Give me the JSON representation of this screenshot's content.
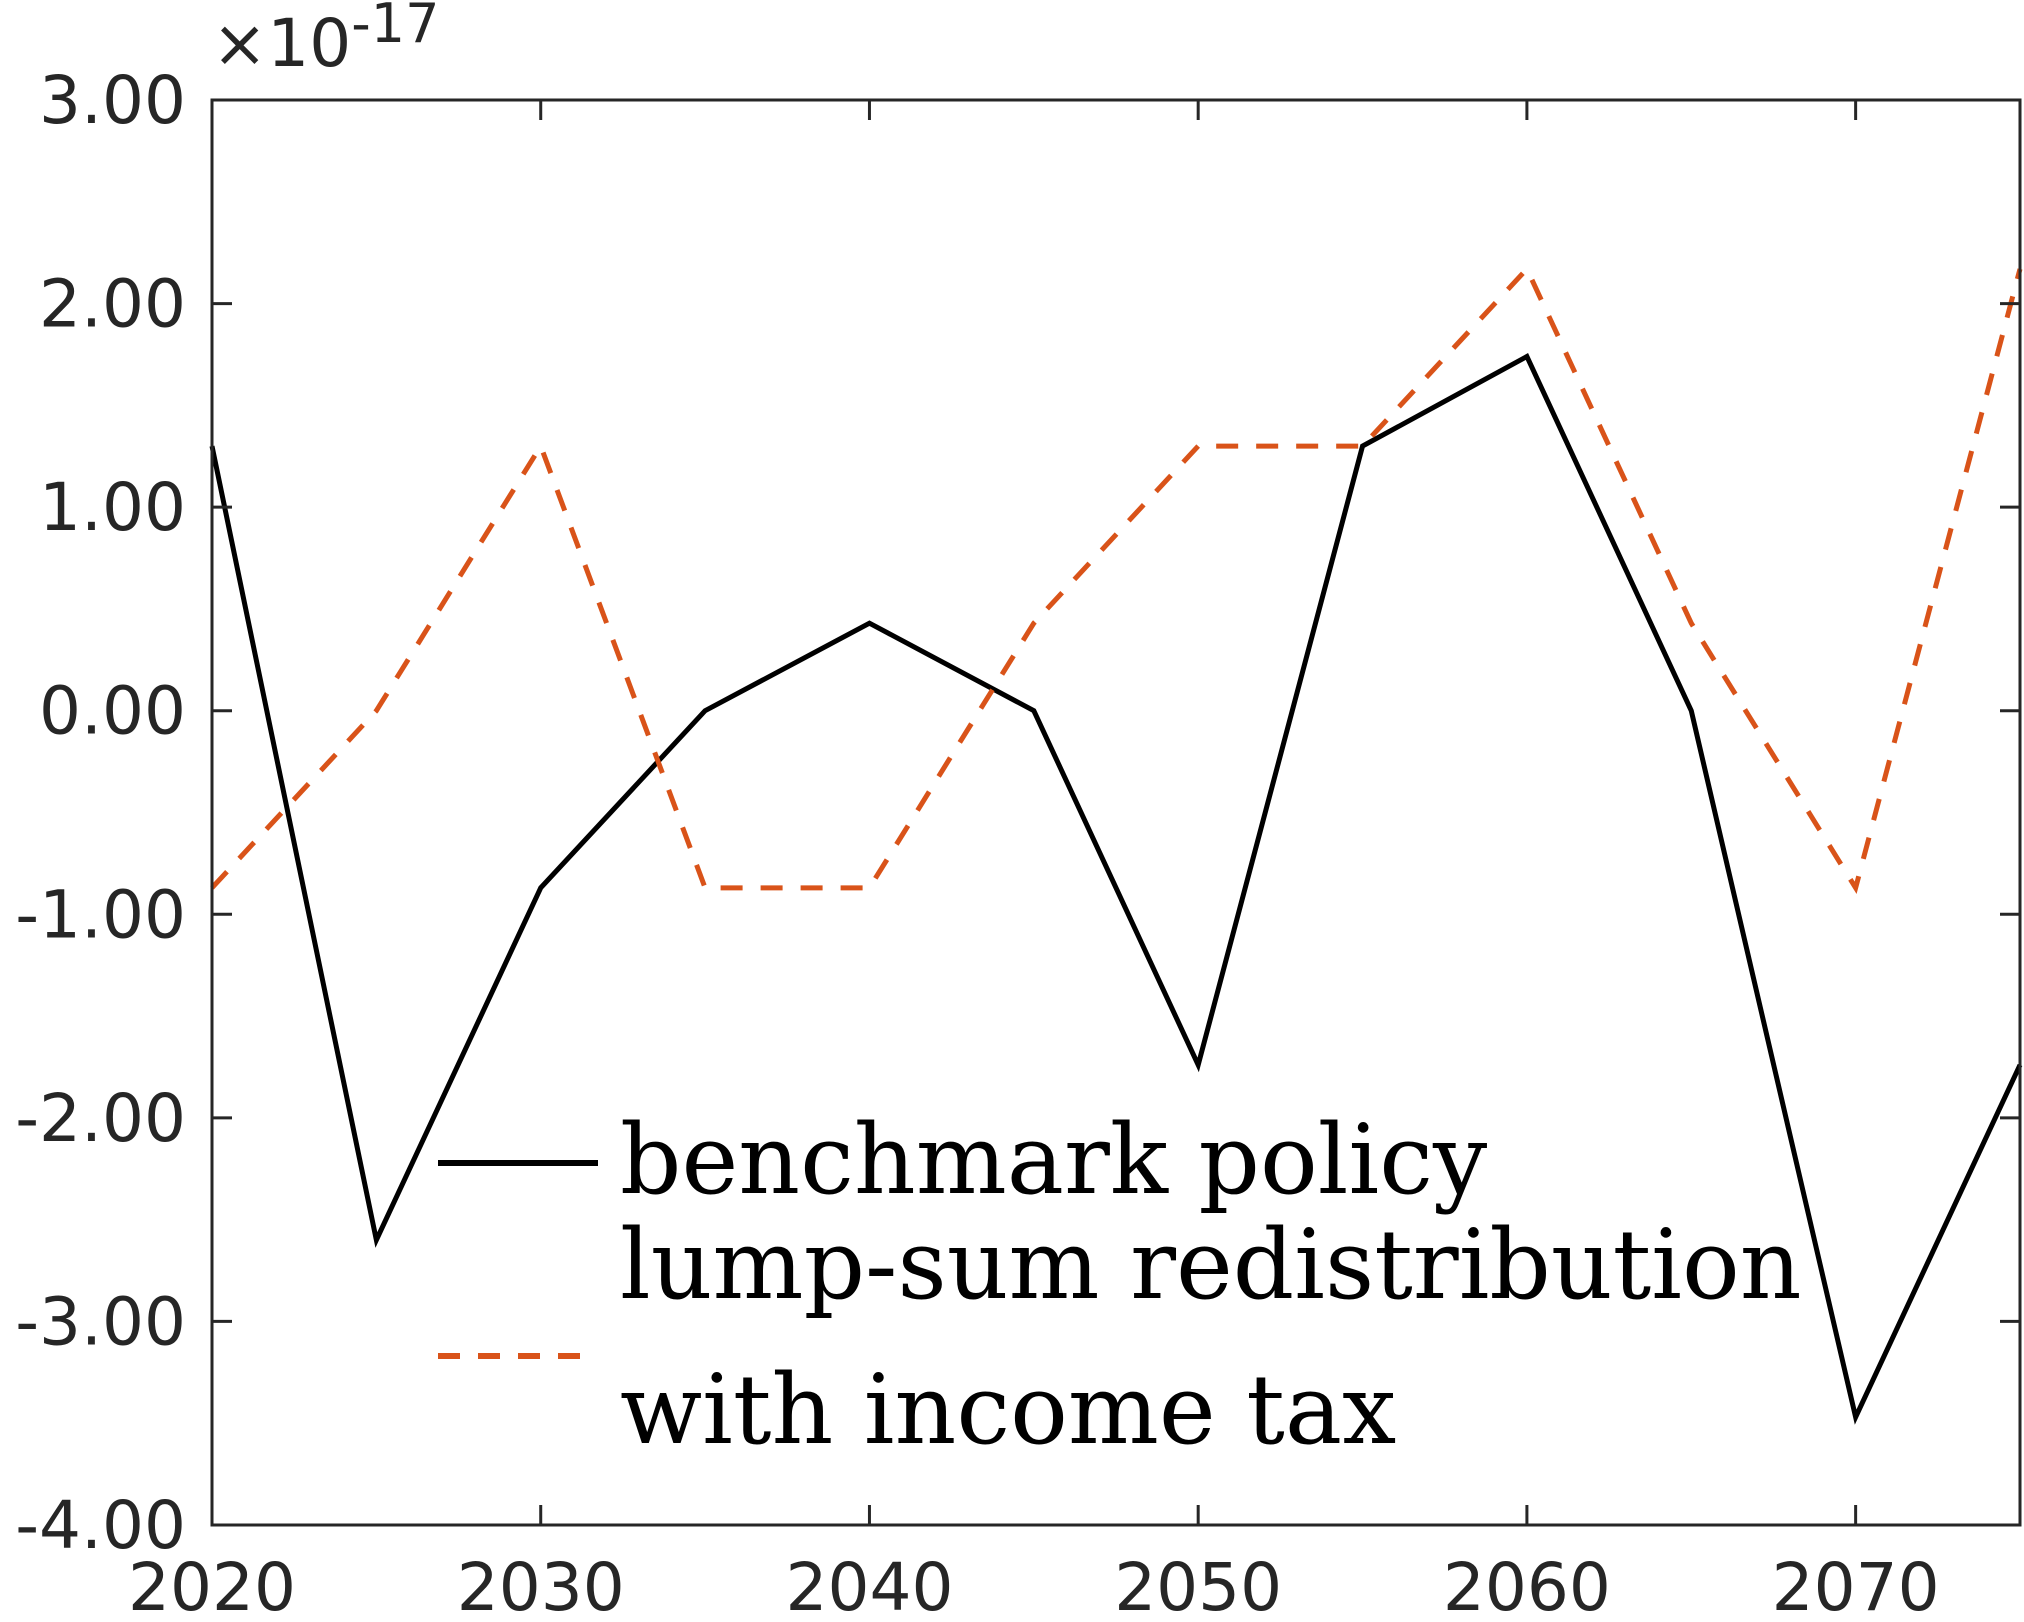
{
  "chart_data": {
    "type": "line",
    "x": [
      2020,
      2025,
      2030,
      2035,
      2040,
      2045,
      2050,
      2055,
      2060,
      2065,
      2070,
      2075
    ],
    "xlim": [
      2020,
      2075
    ],
    "ylim": [
      -4.0,
      3.0
    ],
    "x_ticks": [
      2020,
      2030,
      2040,
      2050,
      2060,
      2070
    ],
    "x_tick_labels": [
      "2020",
      "2030",
      "2040",
      "2050",
      "2060",
      "2070"
    ],
    "y_ticks": [
      -4,
      -3,
      -2,
      -1,
      0,
      1,
      2,
      3
    ],
    "y_tick_labels": [
      "-4.00",
      "-3.00",
      "-2.00",
      "-1.00",
      "0.00",
      "1.00",
      "2.00",
      "3.00"
    ],
    "y_exponent_prefix": "×10",
    "y_exponent_power": "-17",
    "grid": false,
    "legend_position": "bottom-center",
    "series": [
      {
        "name": "benchmark policy",
        "color": "#000000",
        "dash": "solid",
        "values": [
          1.3,
          -2.6,
          -0.87,
          0.0,
          0.43,
          0.0,
          -1.74,
          1.3,
          1.74,
          0.0,
          -3.47,
          -1.74
        ]
      },
      {
        "name": "lump-sum redistribution with income tax",
        "name_lines": [
          "lump-sum redistribution",
          "with income tax"
        ],
        "color": "#D95319",
        "dash": "dashed",
        "values": [
          -0.87,
          0.0,
          1.3,
          -0.87,
          -0.87,
          0.43,
          1.3,
          1.3,
          2.17,
          0.43,
          -0.87,
          2.17
        ]
      }
    ]
  }
}
